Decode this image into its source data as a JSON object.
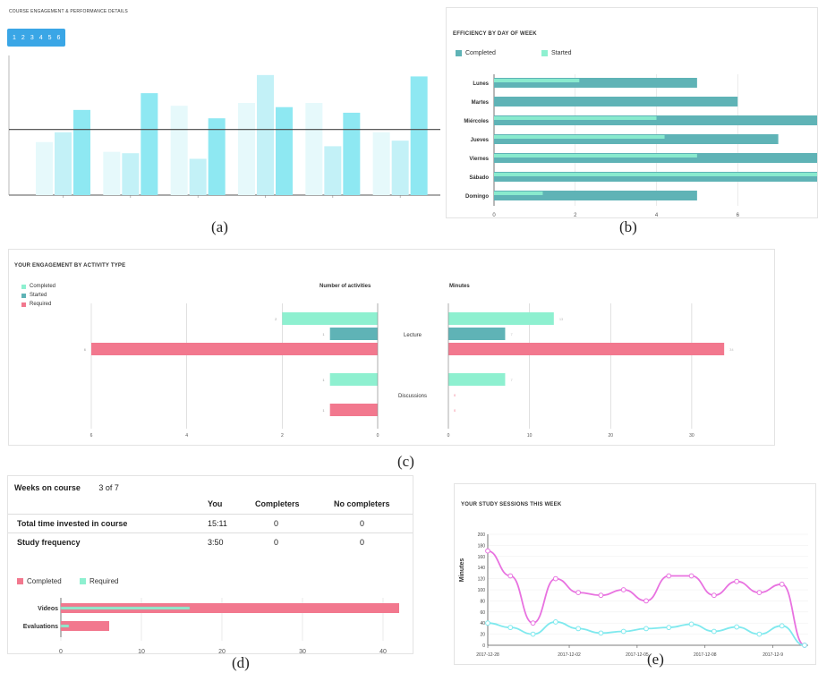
{
  "captions": {
    "a": "(a)",
    "b": "(b)",
    "c": "(c)",
    "d": "(d)",
    "e": "(e)"
  },
  "panel_a": {
    "title": "COURSE ENGAGEMENT & PERFORMANCE DETAILS",
    "pager": [
      "1",
      "2",
      "3",
      "4",
      "5",
      "6"
    ],
    "colors": {
      "light": "#e6f9fb",
      "mid": "#c3f1f7",
      "strong": "#8ee8f2"
    }
  },
  "panel_b": {
    "title": "EFFICIENCY BY DAY OF WEEK",
    "legend": {
      "completed": "Completed",
      "started": "Started"
    },
    "colors": {
      "completed": "#5fb3b6",
      "started": "#8ef0d0"
    }
  },
  "panel_c": {
    "title": "YOUR ENGAGEMENT BY ACTIVITY TYPE",
    "legend": {
      "completed": "Completed",
      "started": "Started",
      "required": "Required"
    },
    "header_left": "Number of activities",
    "header_right": "Minutes",
    "colors": {
      "completed": "#8ef0d0",
      "started": "#5fb3b6",
      "required": "#f2788e"
    }
  },
  "panel_d": {
    "weeks_label": "Weeks on course",
    "weeks_value": "3 of 7",
    "columns": [
      "You",
      "Completers",
      "No completers"
    ],
    "rows": [
      {
        "label": "Total time invested in course",
        "you": "15:11",
        "completers": "0",
        "no_completers": "0"
      },
      {
        "label": "Study frequency",
        "you": "3:50",
        "completers": "0",
        "no_completers": "0"
      }
    ],
    "legend": {
      "completed": "Completed",
      "required": "Required"
    },
    "colors": {
      "completed": "#f2788e",
      "required": "#8ef0d0"
    }
  },
  "panel_e": {
    "title": "YOUR STUDY SESSIONS THIS WEEK",
    "ylabel": "Minutes",
    "colors": {
      "pink": "#e872e0",
      "cyan": "#7fe9ee"
    }
  },
  "chart_data": [
    {
      "id": "a",
      "type": "bar",
      "categories": [
        "",
        "",
        " ",
        " ",
        "",
        ""
      ],
      "series": [
        {
          "values": [
            38,
            31,
            64,
            66,
            66,
            45
          ]
        },
        {
          "values": [
            45,
            30,
            26,
            86,
            35,
            39
          ]
        },
        {
          "values": [
            61,
            73,
            55,
            63,
            59,
            85
          ]
        }
      ],
      "ylim": [
        0,
        100
      ],
      "refline": 47
    },
    {
      "id": "b",
      "type": "bar",
      "orientation": "horizontal",
      "categories": [
        "Lunes",
        "Martes",
        "Miércoles",
        "Jueves",
        "Viernes",
        "Sábado",
        "Domingo"
      ],
      "series": [
        {
          "name": "Completed",
          "values": [
            5,
            6,
            8,
            7,
            8,
            8,
            5
          ]
        },
        {
          "name": "Started",
          "values": [
            2.1,
            0,
            4,
            4.2,
            5,
            8,
            1.2
          ]
        }
      ],
      "xticks": [
        "0",
        "2",
        "4",
        "6"
      ],
      "xlim": [
        0,
        8
      ]
    },
    {
      "id": "c",
      "type": "bar",
      "orientation": "horizontal",
      "categories": [
        "Lecture",
        "Discussions"
      ],
      "left": {
        "series": [
          {
            "name": "Completed",
            "values": [
              2,
              1
            ]
          },
          {
            "name": "Started",
            "values": [
              1,
              0
            ]
          },
          {
            "name": "Required",
            "values": [
              6,
              1
            ]
          }
        ],
        "xticks": [
          "6",
          "4",
          "2",
          "0"
        ],
        "xlim": [
          0,
          6
        ]
      },
      "right": {
        "series": [
          {
            "name": "Completed",
            "values": [
              13,
              7
            ]
          },
          {
            "name": "Started",
            "values": [
              7,
              0
            ]
          },
          {
            "name": "Required",
            "values": [
              34,
              0
            ]
          }
        ],
        "xticks": [
          "0",
          "10",
          "20",
          "30"
        ],
        "xlim": [
          0,
          34
        ]
      }
    },
    {
      "id": "d",
      "type": "bar",
      "orientation": "horizontal",
      "categories": [
        "Videos",
        "Evaluations"
      ],
      "series": [
        {
          "name": "Completed",
          "values": [
            42,
            6
          ]
        },
        {
          "name": "Required",
          "values": [
            16,
            1
          ]
        }
      ],
      "xticks": [
        "0",
        "10",
        "20",
        "30",
        "40"
      ],
      "xlim": [
        0,
        42
      ]
    },
    {
      "id": "e",
      "type": "line",
      "ylabel": "Minutes",
      "yticks": [
        "0",
        "20",
        "40",
        "60",
        "80",
        "100",
        "120",
        "140",
        "160",
        "180",
        "200"
      ],
      "ylim": [
        0,
        200
      ],
      "xticks": [
        "2017-12-28",
        "2017-12-02",
        "2017-12-05",
        "2017-12-08",
        "2017-12-9"
      ],
      "series": [
        {
          "values": [
            170,
            125,
            40,
            120,
            95,
            90,
            100,
            80,
            125,
            125,
            90,
            115,
            95,
            110,
            0
          ]
        },
        {
          "values": [
            40,
            32,
            20,
            42,
            30,
            22,
            25,
            30,
            32,
            38,
            25,
            33,
            20,
            35,
            0
          ]
        }
      ]
    }
  ]
}
